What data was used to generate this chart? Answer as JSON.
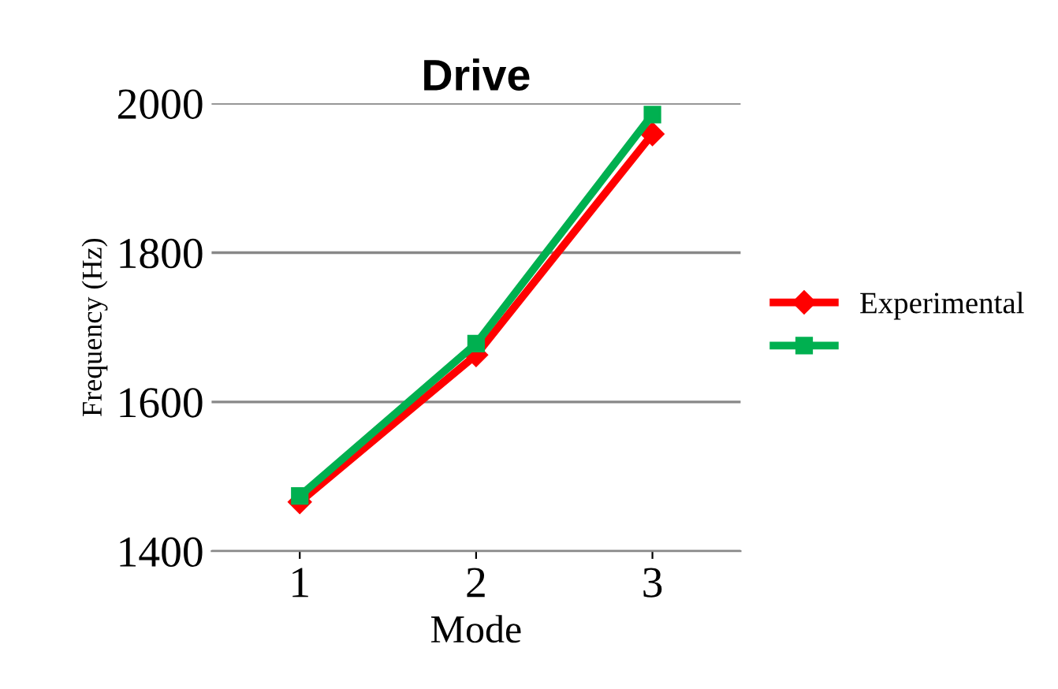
{
  "chart_data": {
    "type": "line",
    "title": "Drive",
    "xlabel": "Mode",
    "ylabel": "Frequency (Hz)",
    "categories": [
      "1",
      "2",
      "3"
    ],
    "series": [
      {
        "name": "Experimental",
        "color": "#ff0000",
        "marker": "diamond",
        "values": [
          1466,
          1663,
          1959
        ]
      },
      {
        "color": "#00b050",
        "marker": "square",
        "values": [
          1474,
          1678,
          1985
        ]
      }
    ],
    "ylim": [
      1400,
      2000
    ],
    "yticks": [
      1400,
      1600,
      1800,
      2000
    ],
    "grid": "y",
    "legend": "right"
  }
}
